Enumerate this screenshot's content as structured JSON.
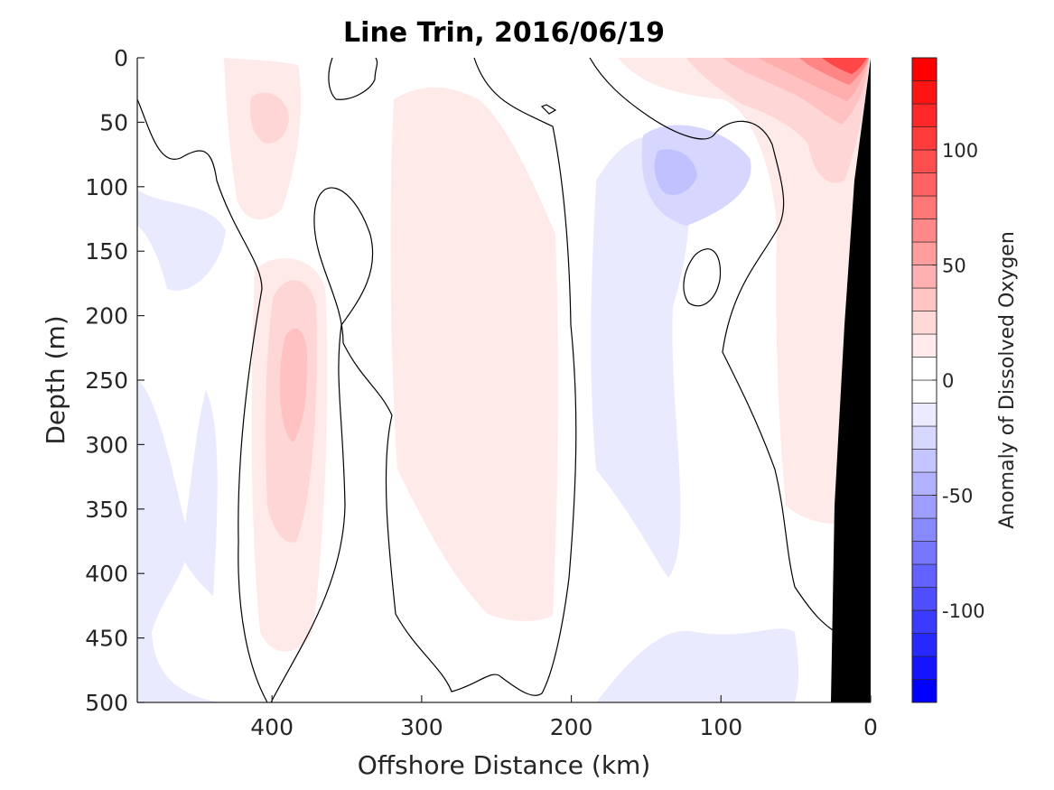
{
  "chart_data": {
    "type": "heatmap",
    "title": "Line Trin, 2016/06/19",
    "xlabel": "Offshore Distance (km)",
    "ylabel": "Depth (m)",
    "xlim": [
      490,
      0
    ],
    "ylim": [
      0,
      500
    ],
    "x_ticks": [
      400,
      300,
      200,
      100,
      0
    ],
    "y_ticks": [
      0,
      50,
      100,
      150,
      200,
      250,
      300,
      350,
      400,
      450,
      500
    ],
    "colorbar": {
      "label": "Anomaly of Dissolved Oxygen",
      "range": [
        -140,
        140
      ],
      "level_step": 10,
      "ticks": [
        -100,
        -50,
        0,
        50,
        100
      ],
      "neg_color": "#0000ff",
      "pos_color": "#ff0000"
    },
    "zero_contour_color": "#000000",
    "bathymetry_color": "#000000",
    "features": [
      {
        "kind": "positive",
        "x_km": 388,
        "depth_m": 260,
        "approx_value": 30
      },
      {
        "kind": "positive",
        "x_km": 10,
        "depth_m": 5,
        "approx_value": 120
      },
      {
        "kind": "positive",
        "x_km": 270,
        "depth_m": 250,
        "approx_value": 10
      },
      {
        "kind": "negative",
        "x_km": 130,
        "depth_m": 90,
        "approx_value": -30
      }
    ]
  }
}
